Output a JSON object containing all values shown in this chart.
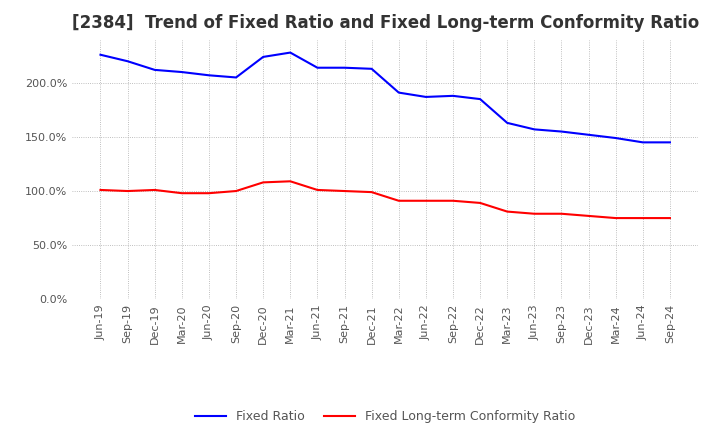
{
  "title": "[2384]  Trend of Fixed Ratio and Fixed Long-term Conformity Ratio",
  "title_fontsize": 12,
  "fixed_ratio": {
    "label": "Fixed Ratio",
    "color": "#0000ff",
    "values": [
      226,
      220,
      212,
      210,
      207,
      205,
      224,
      228,
      214,
      214,
      213,
      191,
      187,
      188,
      185,
      163,
      157,
      155,
      152,
      149,
      145,
      145
    ]
  },
  "fixed_lt_ratio": {
    "label": "Fixed Long-term Conformity Ratio",
    "color": "#ff0000",
    "values": [
      101,
      100,
      101,
      98,
      98,
      100,
      108,
      109,
      101,
      100,
      99,
      91,
      91,
      91,
      89,
      81,
      79,
      79,
      77,
      75,
      75,
      75
    ]
  },
  "x_tick_labels": [
    "Jun-19",
    "Sep-19",
    "Dec-19",
    "Mar-20",
    "Jun-20",
    "Sep-20",
    "Dec-20",
    "Mar-21",
    "Jun-21",
    "Sep-21",
    "Dec-21",
    "Mar-22",
    "Jun-22",
    "Sep-22",
    "Dec-22",
    "Mar-23",
    "Jun-23",
    "Sep-23",
    "Dec-23",
    "Mar-24",
    "Jun-24",
    "Sep-24"
  ],
  "ylim": [
    0,
    240
  ],
  "yticks": [
    0.0,
    50.0,
    100.0,
    150.0,
    200.0
  ],
  "background_color": "#ffffff",
  "plot_bg_color": "#ffffff",
  "grid_color": "#aaaaaa",
  "legend_fontsize": 9,
  "tick_fontsize": 8
}
